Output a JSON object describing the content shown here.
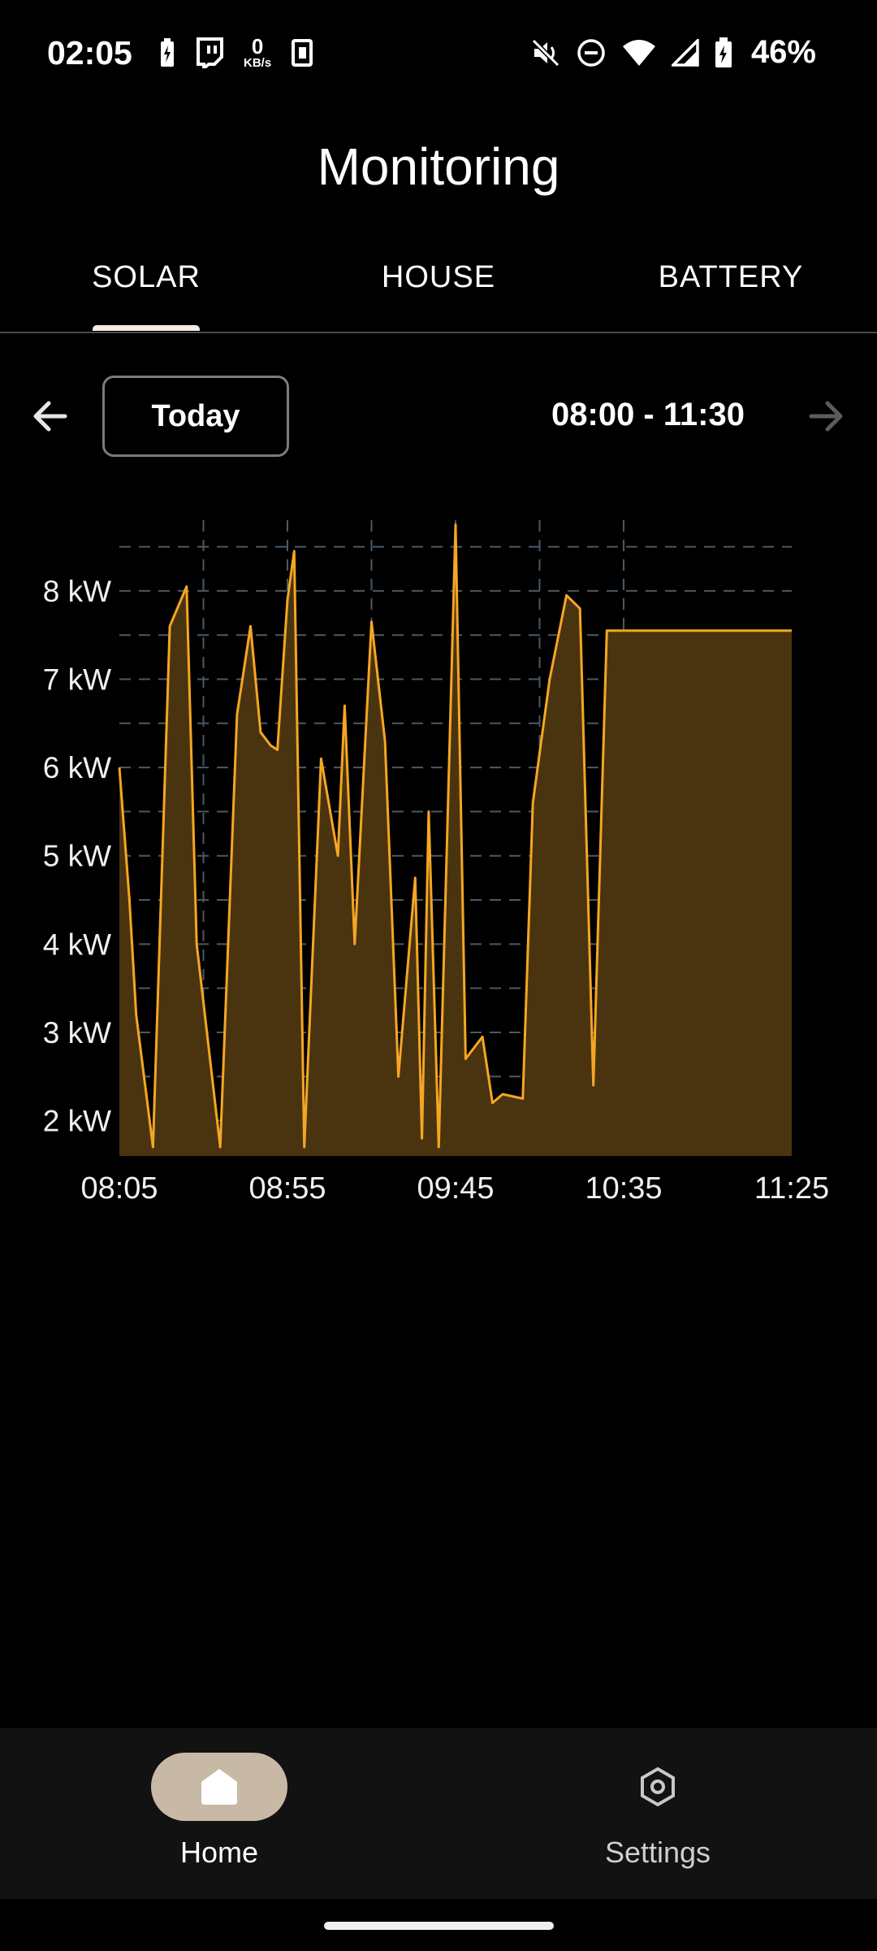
{
  "status_bar": {
    "time": "02:05",
    "netspeed_value": "0",
    "netspeed_unit": "KB/s",
    "battery_percent": "46%",
    "left_icons": [
      "battery-charging-icon",
      "twitch-icon",
      "netspeed",
      "sim-icon"
    ],
    "right_icons": [
      "mute-icon",
      "do-not-disturb-icon",
      "wifi-icon",
      "signal-icon",
      "battery-icon"
    ]
  },
  "header": {
    "title": "Monitoring"
  },
  "tabs": [
    {
      "label": "SOLAR",
      "active": true
    },
    {
      "label": "HOUSE",
      "active": false
    },
    {
      "label": "BATTERY",
      "active": false
    }
  ],
  "range": {
    "today_label": "Today",
    "time_range": "08:00 - 11:30"
  },
  "chart_data": {
    "type": "area",
    "title": "",
    "xlabel": "",
    "ylabel": "",
    "x_tick_labels": [
      "08:05",
      "08:55",
      "09:45",
      "10:35",
      "11:25"
    ],
    "y_tick_labels": [
      "2 kW",
      "3 kW",
      "4 kW",
      "5 kW",
      "6 kW",
      "7 kW",
      "8 kW"
    ],
    "xlim": [
      "08:05",
      "11:25"
    ],
    "ylim": [
      1.6,
      8.8
    ],
    "grid": true,
    "line_color": "#f5a623",
    "fill_color": "#4a3410",
    "series": [
      {
        "x": [
          "08:05",
          "08:08",
          "08:10",
          "08:15",
          "08:20",
          "08:25",
          "08:28",
          "08:35",
          "08:40",
          "08:44",
          "08:47",
          "08:50",
          "08:52",
          "08:55",
          "08:57",
          "09:00",
          "09:05",
          "09:10",
          "09:12",
          "09:15",
          "09:20",
          "09:24",
          "09:28",
          "09:33",
          "09:35",
          "09:37",
          "09:40",
          "09:45",
          "09:48",
          "09:53",
          "09:56",
          "09:59",
          "10:05",
          "10:08",
          "10:13",
          "10:18",
          "10:22",
          "10:26",
          "10:30",
          "10:35",
          "10:40",
          "10:45",
          "10:50",
          "10:55",
          "11:00",
          "11:05",
          "11:08",
          "11:10",
          "11:15",
          "11:25"
        ],
        "y": [
          6.0,
          4.5,
          3.2,
          1.7,
          7.6,
          8.05,
          4.0,
          1.7,
          6.6,
          7.6,
          6.4,
          6.25,
          6.2,
          7.9,
          8.45,
          1.7,
          6.1,
          5.0,
          6.7,
          4.0,
          7.65,
          6.3,
          2.5,
          4.75,
          1.8,
          5.5,
          1.7,
          8.75,
          2.7,
          2.95,
          2.2,
          2.3,
          2.25,
          5.6,
          7.0,
          7.95,
          7.8,
          2.4,
          7.55,
          7.55,
          7.55,
          7.55,
          7.55,
          7.55,
          7.55,
          7.55,
          7.55,
          7.55,
          7.55,
          7.55
        ]
      }
    ]
  },
  "bottom_nav": [
    {
      "label": "Home",
      "icon": "home-icon",
      "active": true
    },
    {
      "label": "Settings",
      "icon": "settings-icon",
      "active": false
    }
  ]
}
